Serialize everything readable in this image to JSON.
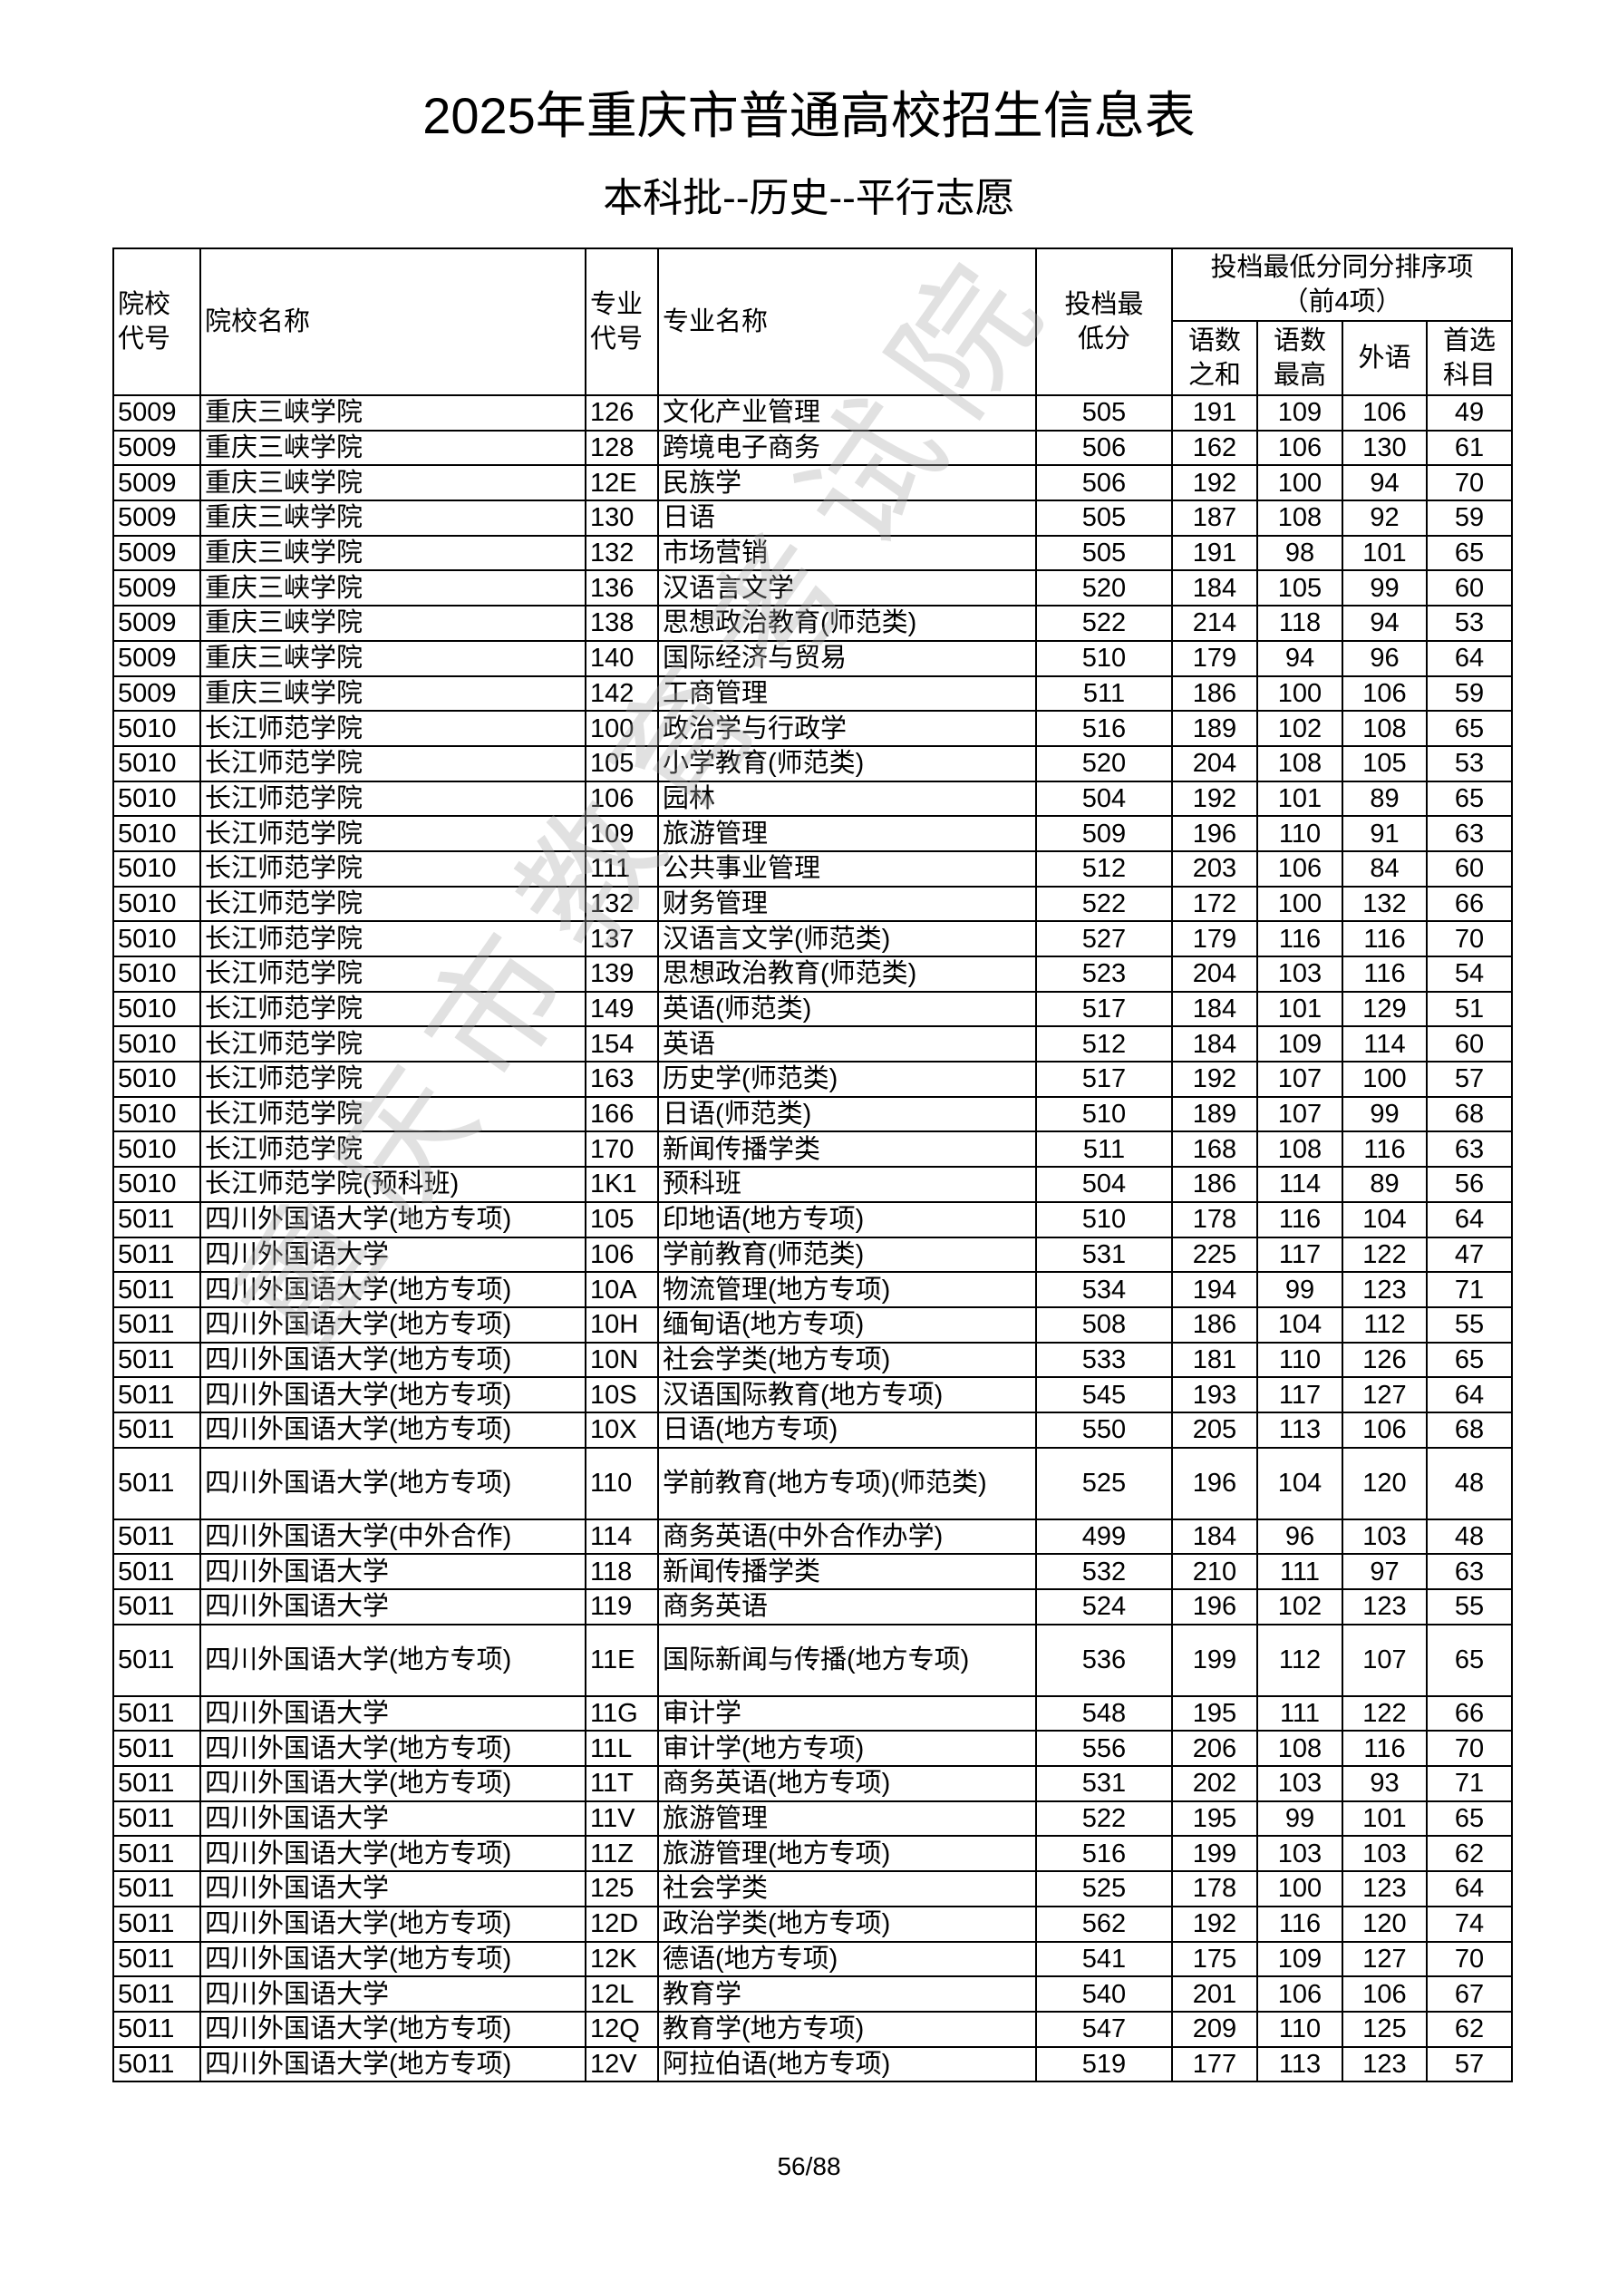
{
  "title": "2025年重庆市普通高校招生信息表",
  "subtitle": "本科批--历史--平行志愿",
  "watermark": "重庆市教育考试院",
  "page_number": "56/88",
  "headers": {
    "school_code": "院校代号",
    "school_name": "院校名称",
    "major_code": "专业代号",
    "major_name": "专业名称",
    "min_score": "投档最低分",
    "tiebreak_group": "投档最低分同分排序项（前4项）",
    "chn_math_sum": "语数之和",
    "chn_math_max": "语数最高",
    "foreign_lang": "外语",
    "first_subject": "首选科目"
  },
  "rows": [
    [
      "5009",
      "重庆三峡学院",
      "126",
      "文化产业管理",
      "505",
      "191",
      "109",
      "106",
      "49"
    ],
    [
      "5009",
      "重庆三峡学院",
      "128",
      "跨境电子商务",
      "506",
      "162",
      "106",
      "130",
      "61"
    ],
    [
      "5009",
      "重庆三峡学院",
      "12E",
      "民族学",
      "506",
      "192",
      "100",
      "94",
      "70"
    ],
    [
      "5009",
      "重庆三峡学院",
      "130",
      "日语",
      "505",
      "187",
      "108",
      "92",
      "59"
    ],
    [
      "5009",
      "重庆三峡学院",
      "132",
      "市场营销",
      "505",
      "191",
      "98",
      "101",
      "65"
    ],
    [
      "5009",
      "重庆三峡学院",
      "136",
      "汉语言文学",
      "520",
      "184",
      "105",
      "99",
      "60"
    ],
    [
      "5009",
      "重庆三峡学院",
      "138",
      "思想政治教育(师范类)",
      "522",
      "214",
      "118",
      "94",
      "53"
    ],
    [
      "5009",
      "重庆三峡学院",
      "140",
      "国际经济与贸易",
      "510",
      "179",
      "94",
      "96",
      "64"
    ],
    [
      "5009",
      "重庆三峡学院",
      "142",
      "工商管理",
      "511",
      "186",
      "100",
      "106",
      "59"
    ],
    [
      "5010",
      "长江师范学院",
      "100",
      "政治学与行政学",
      "516",
      "189",
      "102",
      "108",
      "65"
    ],
    [
      "5010",
      "长江师范学院",
      "105",
      "小学教育(师范类)",
      "520",
      "204",
      "108",
      "105",
      "53"
    ],
    [
      "5010",
      "长江师范学院",
      "106",
      "园林",
      "504",
      "192",
      "101",
      "89",
      "65"
    ],
    [
      "5010",
      "长江师范学院",
      "109",
      "旅游管理",
      "509",
      "196",
      "110",
      "91",
      "63"
    ],
    [
      "5010",
      "长江师范学院",
      "111",
      "公共事业管理",
      "512",
      "203",
      "106",
      "84",
      "60"
    ],
    [
      "5010",
      "长江师范学院",
      "132",
      "财务管理",
      "522",
      "172",
      "100",
      "132",
      "66"
    ],
    [
      "5010",
      "长江师范学院",
      "137",
      "汉语言文学(师范类)",
      "527",
      "179",
      "116",
      "116",
      "70"
    ],
    [
      "5010",
      "长江师范学院",
      "139",
      "思想政治教育(师范类)",
      "523",
      "204",
      "103",
      "116",
      "54"
    ],
    [
      "5010",
      "长江师范学院",
      "149",
      "英语(师范类)",
      "517",
      "184",
      "101",
      "129",
      "51"
    ],
    [
      "5010",
      "长江师范学院",
      "154",
      "英语",
      "512",
      "184",
      "109",
      "114",
      "60"
    ],
    [
      "5010",
      "长江师范学院",
      "163",
      "历史学(师范类)",
      "517",
      "192",
      "107",
      "100",
      "57"
    ],
    [
      "5010",
      "长江师范学院",
      "166",
      "日语(师范类)",
      "510",
      "189",
      "107",
      "99",
      "68"
    ],
    [
      "5010",
      "长江师范学院",
      "170",
      "新闻传播学类",
      "511",
      "168",
      "108",
      "116",
      "63"
    ],
    [
      "5010",
      "长江师范学院(预科班)",
      "1K1",
      "预科班",
      "504",
      "186",
      "114",
      "89",
      "56"
    ],
    [
      "5011",
      "四川外国语大学(地方专项)",
      "105",
      "印地语(地方专项)",
      "510",
      "178",
      "116",
      "104",
      "64"
    ],
    [
      "5011",
      "四川外国语大学",
      "106",
      "学前教育(师范类)",
      "531",
      "225",
      "117",
      "122",
      "47"
    ],
    [
      "5011",
      "四川外国语大学(地方专项)",
      "10A",
      "物流管理(地方专项)",
      "534",
      "194",
      "99",
      "123",
      "71"
    ],
    [
      "5011",
      "四川外国语大学(地方专项)",
      "10H",
      "缅甸语(地方专项)",
      "508",
      "186",
      "104",
      "112",
      "55"
    ],
    [
      "5011",
      "四川外国语大学(地方专项)",
      "10N",
      "社会学类(地方专项)",
      "533",
      "181",
      "110",
      "126",
      "65"
    ],
    [
      "5011",
      "四川外国语大学(地方专项)",
      "10S",
      "汉语国际教育(地方专项)",
      "545",
      "193",
      "117",
      "127",
      "64"
    ],
    [
      "5011",
      "四川外国语大学(地方专项)",
      "10X",
      "日语(地方专项)",
      "550",
      "205",
      "113",
      "106",
      "68"
    ],
    [
      "5011",
      "四川外国语大学(地方专项)",
      "110",
      "学前教育(地方专项)(师范类)",
      "525",
      "196",
      "104",
      "120",
      "48"
    ],
    [
      "5011",
      "四川外国语大学(中外合作)",
      "114",
      "商务英语(中外合作办学)",
      "499",
      "184",
      "96",
      "103",
      "48"
    ],
    [
      "5011",
      "四川外国语大学",
      "118",
      "新闻传播学类",
      "532",
      "210",
      "111",
      "97",
      "63"
    ],
    [
      "5011",
      "四川外国语大学",
      "119",
      "商务英语",
      "524",
      "196",
      "102",
      "123",
      "55"
    ],
    [
      "5011",
      "四川外国语大学(地方专项)",
      "11E",
      "国际新闻与传播(地方专项)",
      "536",
      "199",
      "112",
      "107",
      "65"
    ],
    [
      "5011",
      "四川外国语大学",
      "11G",
      "审计学",
      "548",
      "195",
      "111",
      "122",
      "66"
    ],
    [
      "5011",
      "四川外国语大学(地方专项)",
      "11L",
      "审计学(地方专项)",
      "556",
      "206",
      "108",
      "116",
      "70"
    ],
    [
      "5011",
      "四川外国语大学(地方专项)",
      "11T",
      "商务英语(地方专项)",
      "531",
      "202",
      "103",
      "93",
      "71"
    ],
    [
      "5011",
      "四川外国语大学",
      "11V",
      "旅游管理",
      "522",
      "195",
      "99",
      "101",
      "65"
    ],
    [
      "5011",
      "四川外国语大学(地方专项)",
      "11Z",
      "旅游管理(地方专项)",
      "516",
      "199",
      "103",
      "103",
      "62"
    ],
    [
      "5011",
      "四川外国语大学",
      "125",
      "社会学类",
      "525",
      "178",
      "100",
      "123",
      "64"
    ],
    [
      "5011",
      "四川外国语大学(地方专项)",
      "12D",
      "政治学类(地方专项)",
      "562",
      "192",
      "116",
      "120",
      "74"
    ],
    [
      "5011",
      "四川外国语大学(地方专项)",
      "12K",
      "德语(地方专项)",
      "541",
      "175",
      "109",
      "127",
      "70"
    ],
    [
      "5011",
      "四川外国语大学",
      "12L",
      "教育学",
      "540",
      "201",
      "106",
      "106",
      "67"
    ],
    [
      "5011",
      "四川外国语大学(地方专项)",
      "12Q",
      "教育学(地方专项)",
      "547",
      "209",
      "110",
      "125",
      "62"
    ],
    [
      "5011",
      "四川外国语大学(地方专项)",
      "12V",
      "阿拉伯语(地方专项)",
      "519",
      "177",
      "113",
      "123",
      "57"
    ]
  ]
}
